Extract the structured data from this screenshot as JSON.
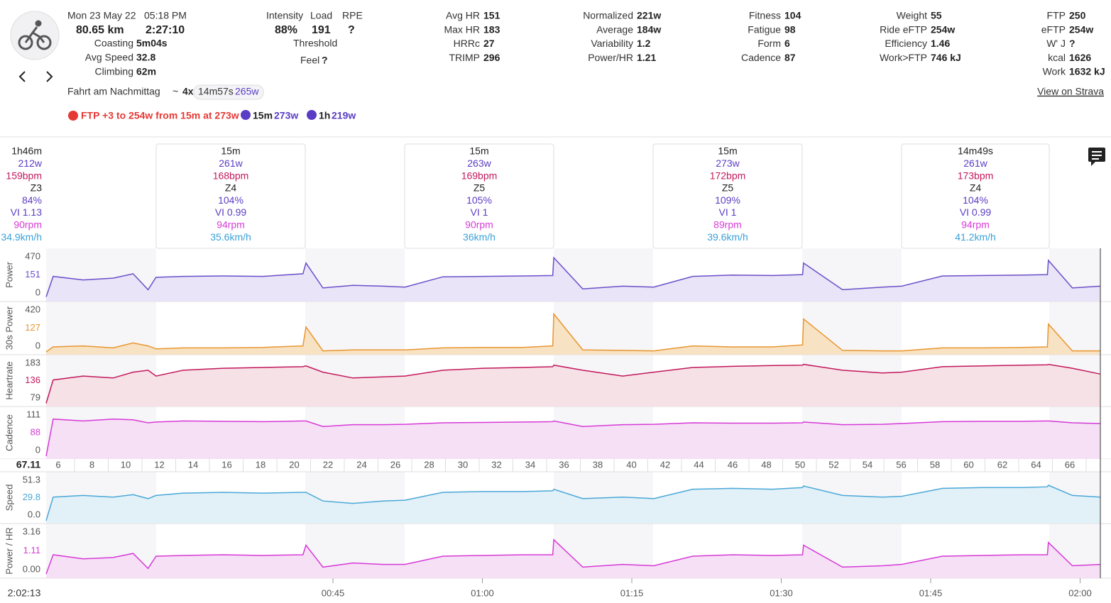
{
  "activity": {
    "date": "Mon 23 May 22",
    "time": "05:18 PM",
    "distance": "80.65 km",
    "duration": "2:27:10",
    "name": "Fahrt am Nachmittag",
    "tilde": "~",
    "reps": "4x",
    "rep_time": "14m57s",
    "rep_power": "265w",
    "strava": "View on Strava"
  },
  "left_stats": [
    {
      "label": "Coasting",
      "value": "5m04s"
    },
    {
      "label": "Avg Speed",
      "value": "32.8"
    },
    {
      "label": "Climbing",
      "value": "62m"
    }
  ],
  "load_block": {
    "intensity_label": "Intensity",
    "intensity": "88%",
    "load_label": "Load",
    "load": "191",
    "rpe_label": "RPE",
    "rpe": "?",
    "threshold": "Threshold",
    "feel_label": "Feel",
    "feel": "?"
  },
  "stat_columns": [
    [
      {
        "label": "Avg HR",
        "value": "151"
      },
      {
        "label": "Max HR",
        "value": "183"
      },
      {
        "label": "HRRc",
        "value": "27"
      },
      {
        "label": "TRIMP",
        "value": "296"
      }
    ],
    [
      {
        "label": "Normalized",
        "value": "221w"
      },
      {
        "label": "Average",
        "value": "184w"
      },
      {
        "label": "Variability",
        "value": "1.2"
      },
      {
        "label": "Power/HR",
        "value": "1.21"
      }
    ],
    [
      {
        "label": "Fitness",
        "value": "104"
      },
      {
        "label": "Fatigue",
        "value": "98"
      },
      {
        "label": "Form",
        "value": "6"
      },
      {
        "label": "Cadence",
        "value": "87"
      }
    ],
    [
      {
        "label": "Weight",
        "value": "55"
      },
      {
        "label": "Ride eFTP",
        "value": "254w"
      },
      {
        "label": "Efficiency",
        "value": "1.46"
      },
      {
        "label": "Work>FTP",
        "value": "746 kJ"
      }
    ],
    [
      {
        "label": "FTP",
        "value": "250"
      },
      {
        "label": "eFTP",
        "value": "254w"
      },
      {
        "label": "W' J",
        "value": "?"
      },
      {
        "label": "kcal",
        "value": "1626"
      },
      {
        "label": "Work",
        "value": "1632 kJ"
      }
    ]
  ],
  "achievements": {
    "ftp": "FTP +3 to 254w from 15m at 273w",
    "bests": [
      {
        "duration": "15m",
        "power": "273w"
      },
      {
        "duration": "1h",
        "power": "219w"
      }
    ]
  },
  "intervals": {
    "summary": [
      "1h46m",
      "212w",
      "159bpm",
      "Z3",
      "84%",
      "VI 1.13",
      "90rpm",
      "34.9km/h"
    ],
    "boxes": [
      [
        "15m",
        "261w",
        "168bpm",
        "Z4",
        "104%",
        "VI 0.99",
        "94rpm",
        "35.6km/h"
      ],
      [
        "15m",
        "263w",
        "169bpm",
        "Z5",
        "105%",
        "VI 1",
        "90rpm",
        "36km/h"
      ],
      [
        "15m",
        "273w",
        "172bpm",
        "Z5",
        "109%",
        "VI 1",
        "89rpm",
        "39.6km/h"
      ],
      [
        "14m49s",
        "261w",
        "173bpm",
        "Z4",
        "104%",
        "VI 0.99",
        "94rpm",
        "41.2km/h"
      ]
    ]
  },
  "x": [
    16.3,
    17,
    20,
    23,
    25,
    26.5,
    27.3,
    30,
    34,
    38,
    42,
    42.3,
    44,
    47,
    50,
    52.2,
    56,
    60,
    64,
    67,
    67.1,
    70,
    74,
    77.1,
    81,
    85,
    89,
    92,
    92.1,
    96,
    100,
    101.9,
    106,
    110,
    114,
    116.5,
    116.6,
    119,
    121.8
  ],
  "charts": [
    {
      "label": "Power",
      "ticks": [
        "470",
        "151",
        "0"
      ],
      "values": [
        20,
        250,
        210,
        230,
        280,
        100,
        240,
        250,
        255,
        250,
        280,
        400,
        120,
        150,
        140,
        130,
        245,
        250,
        255,
        260,
        460,
        110,
        140,
        130,
        250,
        265,
        260,
        270,
        400,
        100,
        130,
        140,
        255,
        260,
        265,
        270,
        430,
        120,
        140
      ]
    },
    {
      "label": "30s Power",
      "ticks": [
        "420",
        "127",
        "0"
      ],
      "values": [
        0,
        50,
        60,
        40,
        90,
        60,
        30,
        40,
        40,
        45,
        60,
        250,
        10,
        20,
        20,
        20,
        40,
        45,
        45,
        60,
        380,
        20,
        15,
        10,
        60,
        50,
        50,
        70,
        330,
        15,
        10,
        10,
        40,
        40,
        45,
        50,
        280,
        10,
        10
      ]
    },
    {
      "label": "Heartrate",
      "ticks": [
        "183",
        "136",
        "79"
      ],
      "values": [
        80,
        140,
        150,
        145,
        160,
        165,
        150,
        165,
        170,
        172,
        174,
        176,
        160,
        145,
        148,
        150,
        165,
        170,
        172,
        174,
        178,
        165,
        150,
        160,
        172,
        175,
        177,
        178,
        180,
        165,
        158,
        160,
        174,
        176,
        178,
        179,
        180,
        170,
        155
      ]
    },
    {
      "label": "Cadence",
      "ticks": [
        "111",
        "88",
        "0"
      ],
      "values": [
        0,
        100,
        95,
        100,
        98,
        90,
        92,
        95,
        94,
        93,
        95,
        95,
        80,
        85,
        85,
        86,
        90,
        91,
        92,
        93,
        95,
        80,
        85,
        86,
        90,
        89,
        89,
        90,
        92,
        85,
        86,
        88,
        93,
        94,
        94,
        95,
        95,
        90,
        88
      ]
    },
    {
      "label": "Speed",
      "ticks": [
        "51.3",
        "29.8",
        "0.0"
      ],
      "values": [
        0,
        30,
        32,
        30,
        33,
        28,
        32,
        35,
        36,
        35,
        36,
        36,
        25,
        22,
        25,
        26,
        36,
        37,
        37,
        38,
        40,
        28,
        30,
        28,
        40,
        41,
        40,
        42,
        44,
        32,
        30,
        31,
        41,
        42,
        42,
        43,
        45,
        32,
        30
      ]
    },
    {
      "label": "Power / HR",
      "ticks": [
        "3.16",
        "1.11",
        "0.00"
      ],
      "values": [
        0.1,
        1.5,
        1.2,
        1.3,
        1.6,
        0.5,
        1.4,
        1.45,
        1.5,
        1.45,
        1.5,
        2.2,
        0.6,
        0.9,
        0.8,
        0.8,
        1.4,
        1.45,
        1.5,
        1.5,
        2.6,
        0.6,
        0.8,
        0.7,
        1.4,
        1.5,
        1.45,
        1.5,
        2.2,
        0.6,
        0.7,
        0.8,
        1.4,
        1.45,
        1.5,
        1.5,
        2.4,
        0.7,
        0.8
      ]
    }
  ],
  "distance_axis": {
    "start": "67.11",
    "ticks": [
      "6",
      "8",
      "10",
      "12",
      "14",
      "16",
      "18",
      "20",
      "22",
      "24",
      "26",
      "28",
      "30",
      "32",
      "34",
      "36",
      "38",
      "40",
      "42",
      "44",
      "46",
      "48",
      "50",
      "52",
      "54",
      "56",
      "58",
      "60",
      "62",
      "64",
      "66"
    ]
  },
  "time_axis": {
    "start": "2:02:13",
    "ticks": [
      "00:45",
      "01:00",
      "01:15",
      "01:30",
      "01:45",
      "02:00"
    ]
  }
}
